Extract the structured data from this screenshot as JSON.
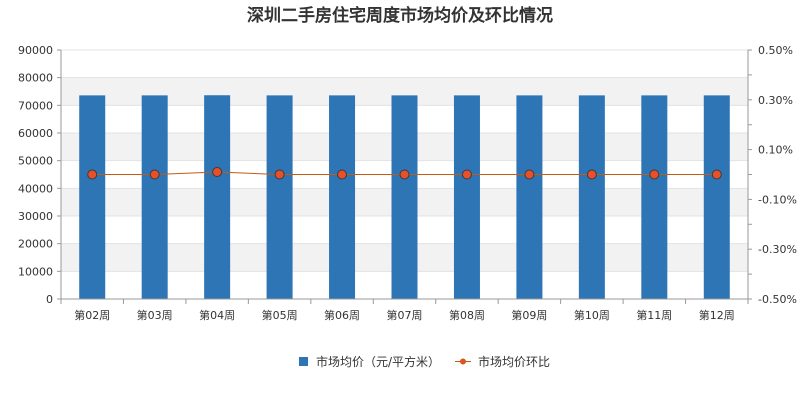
{
  "chart_data": {
    "type": "bar+line",
    "title": "深圳二手房住宅周度市场均价及环比情况",
    "categories": [
      "第02周",
      "第03周",
      "第04周",
      "第05周",
      "第06周",
      "第07周",
      "第08周",
      "第09周",
      "第10周",
      "第11周",
      "第12周"
    ],
    "series": [
      {
        "name": "市场均价（元/平方米）",
        "type": "bar",
        "axis": "left",
        "color": "#2e75b6",
        "values": [
          73600,
          73600,
          73650,
          73600,
          73600,
          73600,
          73600,
          73600,
          73600,
          73600,
          73600
        ]
      },
      {
        "name": "市场均价环比",
        "type": "line",
        "axis": "right",
        "color": "#c55a11",
        "marker_fill": "#e8502a",
        "values": [
          0.0,
          0.0,
          0.01,
          0.0,
          0.0,
          0.0,
          0.0,
          0.0,
          0.0,
          0.0,
          0.0
        ]
      }
    ],
    "y_left": {
      "ylim": [
        0,
        90000
      ],
      "ticks": [
        "0",
        "10000",
        "20000",
        "30000",
        "40000",
        "50000",
        "60000",
        "70000",
        "80000",
        "90000"
      ]
    },
    "y_right": {
      "ylim": [
        -0.5,
        0.5
      ],
      "unit": "%",
      "ticks": [
        "-0.50%",
        "-0.30%",
        "-0.10%",
        "0.10%",
        "0.30%",
        "0.50%"
      ]
    },
    "grid": true,
    "legend_position": "bottom"
  }
}
